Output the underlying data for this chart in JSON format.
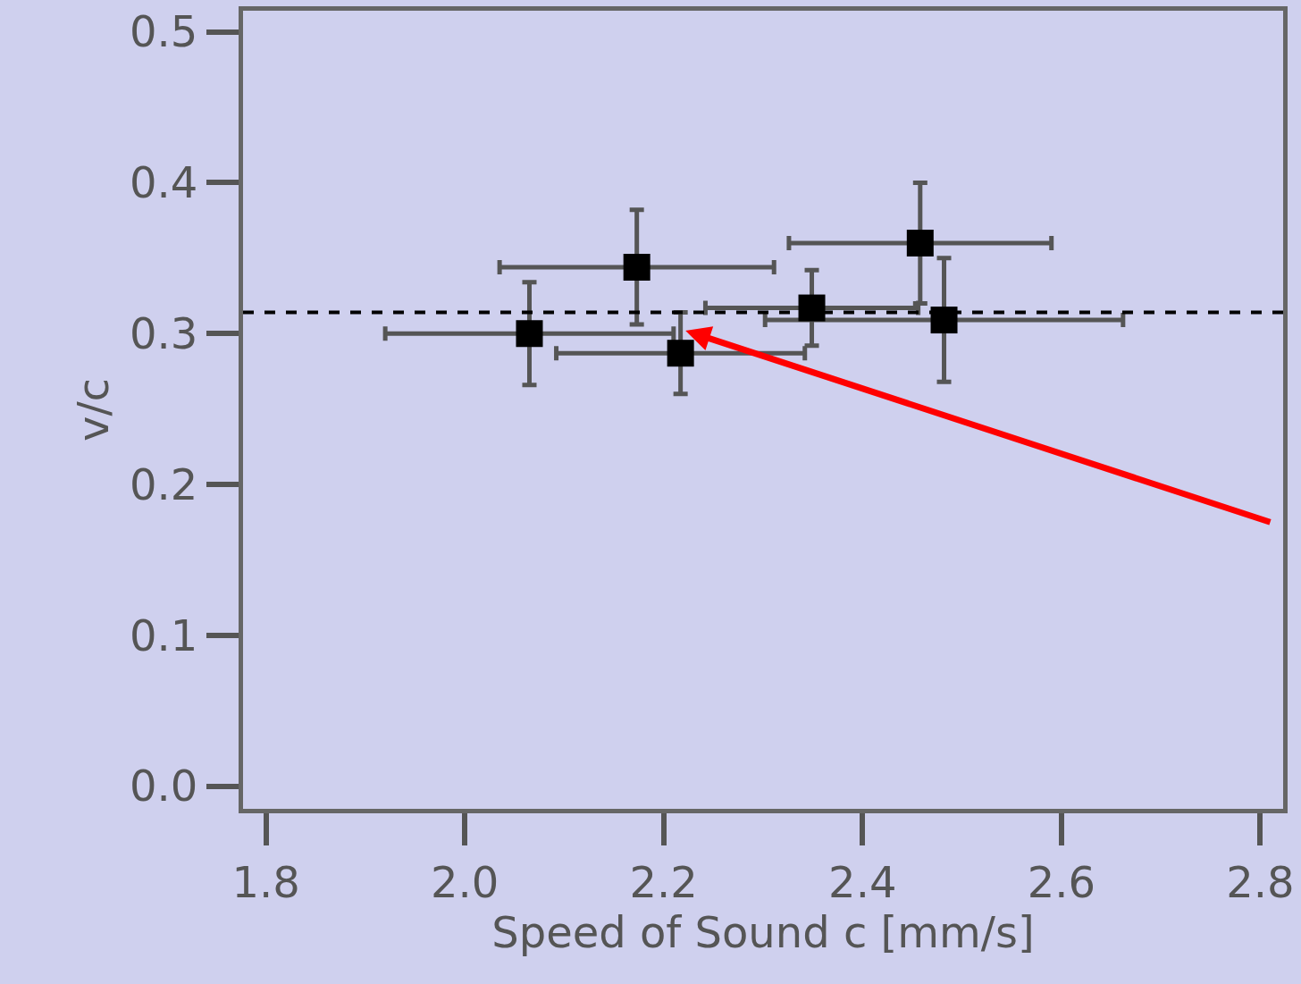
{
  "chart_data": {
    "type": "scatter",
    "xlabel": "Speed of Sound c [mm/s]",
    "ylabel": "v/c",
    "x": [
      2.065,
      2.173,
      2.217,
      2.349,
      2.458,
      2.482
    ],
    "values": [
      0.3,
      0.344,
      0.287,
      0.317,
      0.36,
      0.309
    ],
    "errors": [
      0.034,
      0.038,
      0.027,
      0.025,
      0.04,
      0.041
    ],
    "xerrors": [
      0.145,
      0.138,
      0.125,
      0.107,
      0.132,
      0.18
    ],
    "color": "#000000",
    "marker": "square",
    "xlim": [
      1.777,
      2.823
    ],
    "xticks": [
      {
        "value": 1.8,
        "label": "1.8"
      },
      {
        "value": 2.0,
        "label": "2.0"
      },
      {
        "value": 2.2,
        "label": "2.2"
      },
      {
        "value": 2.4,
        "label": "2.4"
      },
      {
        "value": 2.6,
        "label": "2.6"
      },
      {
        "value": 2.8,
        "label": "2.8"
      }
    ],
    "ylim": [
      -0.015,
      0.514
    ],
    "yticks": [
      {
        "value": 0,
        "label": "0.0"
      },
      0.1,
      0.2,
      0.3,
      0.4,
      0.5
    ],
    "ref_lines": [
      {
        "axis": "y",
        "value": 0.314,
        "color": "#000000",
        "line_style": "dashed"
      }
    ],
    "grid": false,
    "legend": false
  }
}
